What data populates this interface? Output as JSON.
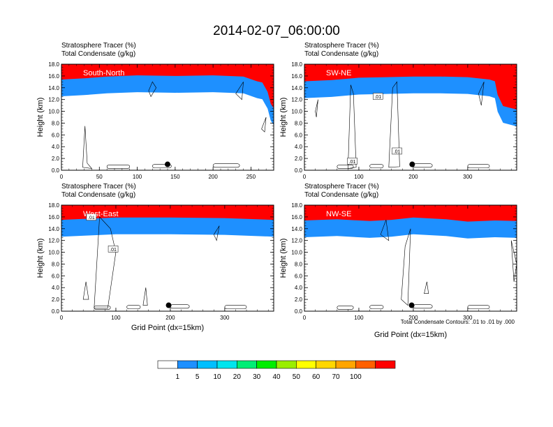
{
  "figure": {
    "title": "2014-02-07_06:00:00",
    "footnote": "Total Condensate Contours: .01 to .01 by .000"
  },
  "colorbar": {
    "levels": [
      "1",
      "5",
      "10",
      "20",
      "30",
      "40",
      "50",
      "60",
      "70",
      "100"
    ],
    "colors": [
      "#ffffff",
      "#1e90ff",
      "#00bfff",
      "#00e5ee",
      "#00ee76",
      "#00ee00",
      "#9aee00",
      "#ffff00",
      "#ffd700",
      "#ffa500",
      "#ff6000",
      "#ff0000"
    ]
  },
  "chart_data": [
    {
      "type": "heatmap",
      "panel": "top-left",
      "label": "South-North",
      "title_lines": [
        "Stratosphere Tracer   (%)",
        "Total Condensate   (g/kg)"
      ],
      "ylabel": "Height (km)",
      "xlabel": "",
      "xlim": [
        0,
        280
      ],
      "ylim": [
        0,
        18
      ],
      "xticks": [
        0,
        50,
        100,
        150,
        200,
        250
      ],
      "yticks": [
        0,
        2,
        4,
        6,
        8,
        10,
        12,
        14,
        16,
        18
      ],
      "tracer_front_km": [
        [
          0,
          15.1
        ],
        [
          30,
          15.3
        ],
        [
          60,
          15.6
        ],
        [
          100,
          15.8
        ],
        [
          150,
          15.7
        ],
        [
          200,
          15.8
        ],
        [
          240,
          15.6
        ],
        [
          258,
          14.8
        ],
        [
          265,
          14.6
        ],
        [
          272,
          13.0
        ],
        [
          276,
          11.0
        ],
        [
          280,
          10.2
        ]
      ],
      "point_marker": {
        "x": 140,
        "y": 1.0
      },
      "contour_labels": []
    },
    {
      "type": "heatmap",
      "panel": "top-right",
      "label": "SW-NE",
      "title_lines": [
        "Stratosphere Tracer   (%)",
        "Total Condensate   (g/kg)"
      ],
      "ylabel": "Height (km)",
      "xlabel": "",
      "xlim": [
        0,
        390
      ],
      "ylim": [
        0,
        18
      ],
      "xticks": [
        0,
        100,
        200,
        300
      ],
      "yticks": [
        0,
        2,
        4,
        6,
        8,
        10,
        12,
        14,
        16,
        18
      ],
      "tracer_front_km": [
        [
          0,
          14.8
        ],
        [
          50,
          15.0
        ],
        [
          100,
          15.4
        ],
        [
          150,
          15.5
        ],
        [
          200,
          15.6
        ],
        [
          250,
          15.6
        ],
        [
          300,
          15.5
        ],
        [
          340,
          15.1
        ],
        [
          350,
          14.8
        ],
        [
          355,
          12.5
        ],
        [
          365,
          10.6
        ],
        [
          390,
          10.0
        ]
      ],
      "point_marker": {
        "x": 198,
        "y": 1.0
      },
      "contour_labels": [
        ".01",
        ".01",
        ".01"
      ]
    },
    {
      "type": "heatmap",
      "panel": "bottom-left",
      "label": "West-East",
      "title_lines": [
        "Stratosphere Tracer   (%)",
        "Total Condensate   (g/kg)"
      ],
      "ylabel": "Height (km)",
      "xlabel": "Grid Point (dx=15km)",
      "xlim": [
        0,
        390
      ],
      "ylim": [
        0,
        18
      ],
      "xticks": [
        0,
        100,
        200,
        300
      ],
      "yticks": [
        0,
        2,
        4,
        6,
        8,
        10,
        12,
        14,
        16,
        18
      ],
      "tracer_front_km": [
        [
          0,
          15.2
        ],
        [
          50,
          15.4
        ],
        [
          100,
          15.6
        ],
        [
          200,
          15.6
        ],
        [
          300,
          15.5
        ],
        [
          390,
          15.2
        ]
      ],
      "point_marker": {
        "x": 197,
        "y": 1.0
      },
      "contour_labels": [
        ".01",
        ".01"
      ]
    },
    {
      "type": "heatmap",
      "panel": "bottom-right",
      "label": "NW-SE",
      "title_lines": [
        "Stratosphere Tracer   (%)",
        "Total Condensate   (g/kg)"
      ],
      "ylabel": "Height (km)",
      "xlabel": "Grid Point (dx=15km)",
      "xlim": [
        0,
        390
      ],
      "ylim": [
        0,
        18
      ],
      "xticks": [
        0,
        100,
        200,
        300
      ],
      "yticks": [
        0,
        2,
        4,
        6,
        8,
        10,
        12,
        14,
        16,
        18
      ],
      "tracer_front_km": [
        [
          0,
          15.1
        ],
        [
          60,
          15.3
        ],
        [
          120,
          15.0
        ],
        [
          160,
          15.2
        ],
        [
          200,
          15.6
        ],
        [
          260,
          15.3
        ],
        [
          300,
          14.9
        ],
        [
          350,
          15.1
        ],
        [
          390,
          15.0
        ]
      ],
      "point_marker": {
        "x": 197,
        "y": 1.0
      },
      "contour_labels": []
    }
  ]
}
